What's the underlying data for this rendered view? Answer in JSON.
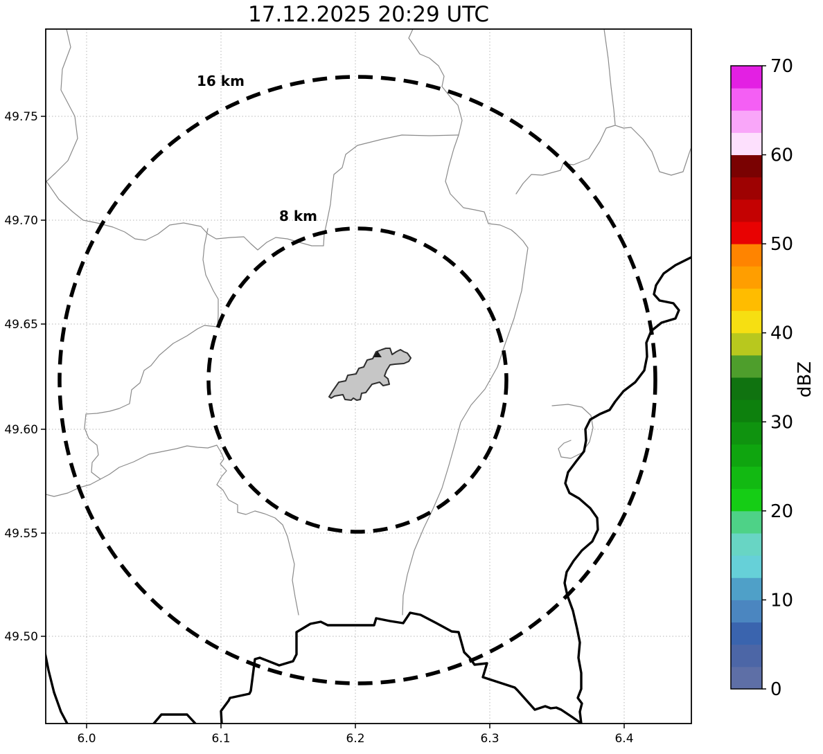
{
  "title": "17.12.2025 20:29 UTC",
  "axes": {
    "x": {
      "ticks": [
        "6.0",
        "6.1",
        "6.2",
        "6.3",
        "6.4"
      ]
    },
    "y": {
      "ticks": [
        "49.75",
        "49.70",
        "49.65",
        "49.60",
        "49.55",
        "49.50"
      ]
    }
  },
  "range_rings": [
    {
      "label": "16 km"
    },
    {
      "label": "8 km"
    }
  ],
  "colorbar": {
    "label": "dBZ",
    "ticks": [
      "0",
      "10",
      "20",
      "30",
      "40",
      "50",
      "60",
      "70"
    ],
    "min": 0,
    "max": 70,
    "step": 2.5,
    "colors": [
      "#5E6FA6",
      "#4C66A6",
      "#3A64AE",
      "#4B86C0",
      "#4FA0C8",
      "#66D0D8",
      "#68D5C4",
      "#4ED287",
      "#15CD15",
      "#12B912",
      "#0FA50F",
      "#0F930F",
      "#0D800D",
      "#107310",
      "#4E9E2C",
      "#B8C81E",
      "#F6DF12",
      "#FFBC00",
      "#FF9E00",
      "#FF8400",
      "#E80202",
      "#C40202",
      "#9E0202",
      "#7A0202",
      "#FDE0FD",
      "#F9A6F9",
      "#F45FF4",
      "#E320E3"
    ]
  },
  "chart_data": {
    "type": "map",
    "title": "17.12.2025 20:29 UTC",
    "x_axis": {
      "ticks": [
        6.0,
        6.1,
        6.2,
        6.3,
        6.4
      ],
      "range": [
        5.97,
        6.45
      ]
    },
    "y_axis": {
      "ticks": [
        49.75,
        49.7,
        49.65,
        49.6,
        49.55,
        49.5
      ],
      "range": [
        49.458,
        49.792
      ]
    },
    "colorbar": {
      "label": "dBZ",
      "range": [
        0,
        70
      ],
      "tick_step": 10,
      "n_segments": 28
    },
    "range_rings_km": [
      16,
      8
    ],
    "rings_center": {
      "lon": 6.2,
      "lat": 49.62
    },
    "radar_echoes": "none visible",
    "grid": true,
    "legend_position": "right colorbar"
  }
}
